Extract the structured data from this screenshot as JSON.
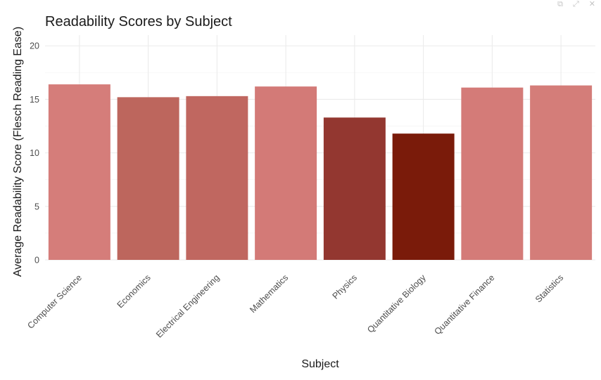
{
  "window_controls": {
    "icons": [
      "restore-icon",
      "expand-icon",
      "close-icon"
    ],
    "glyphs": [
      "⧉",
      "⤢",
      "✕"
    ]
  },
  "chart_data": {
    "type": "bar",
    "title": "Readability Scores by Subject",
    "xlabel": "Subject",
    "ylabel": "Average Readability Score (Flesch Reading Ease)",
    "categories": [
      "Computer Science",
      "Economics",
      "Electrical Engineering",
      "Mathematics",
      "Physics",
      "Quantitative Biology",
      "Quantitative Finance",
      "Statistics"
    ],
    "values": [
      16.4,
      15.2,
      15.3,
      16.2,
      13.3,
      11.8,
      16.1,
      16.3
    ],
    "colors": [
      "#d57d7a",
      "#bd665d",
      "#c06760",
      "#d37a77",
      "#933730",
      "#7a1b0a",
      "#d47b78",
      "#d47d79"
    ],
    "ylim": [
      0,
      21
    ],
    "yticks": [
      0,
      5,
      10,
      15,
      20
    ],
    "grid": true,
    "legend": "none"
  }
}
